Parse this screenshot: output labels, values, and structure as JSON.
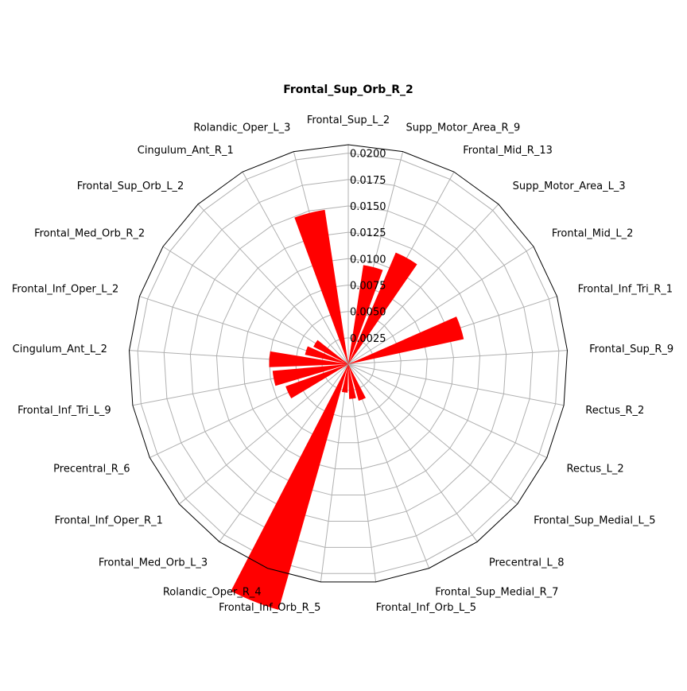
{
  "chart_data": {
    "type": "bar",
    "subtype": "polar",
    "title": "Frontal_Sup_Orb_R_2",
    "categories": [
      "Frontal_Sup_L_2",
      "Supp_Motor_Area_R_9",
      "Frontal_Mid_R_13",
      "Supp_Motor_Area_L_3",
      "Frontal_Mid_L_2",
      "Frontal_Inf_Tri_R_1",
      "Frontal_Sup_R_9",
      "Rectus_R_2",
      "Rectus_L_2",
      "Frontal_Sup_Medial_L_5",
      "Precentral_L_8",
      "Frontal_Sup_Medial_R_7",
      "Frontal_Inf_Orb_L_5",
      "Frontal_Inf_Orb_R_5",
      "Rolandic_Oper_R_4",
      "Frontal_Med_Orb_L_3",
      "Frontal_Inf_Oper_R_1",
      "Precentral_R_6",
      "Frontal_Inf_Tri_L_9",
      "Cingulum_Ant_L_2",
      "Frontal_Inf_Oper_L_2",
      "Frontal_Med_Orb_R_2",
      "Frontal_Sup_Orb_L_2",
      "Cingulum_Ant_R_1",
      "Rolandic_Oper_L_3"
    ],
    "values": [
      0.0,
      0.0095,
      0.0115,
      0.0,
      0.0,
      0.0112,
      0.0,
      0.0,
      0.0,
      0.0,
      0.0,
      0.0036,
      0.0033,
      0.0027,
      0.0242,
      0.0,
      0.0,
      0.0063,
      0.0072,
      0.0075,
      0.0042,
      0.0037,
      0.0,
      0.0,
      0.0148
    ],
    "rlim": [
      0,
      0.0208
    ],
    "rticks": [
      "0.0025",
      "0.0050",
      "0.0075",
      "0.0100",
      "0.0125",
      "0.0150",
      "0.0175",
      "0.0200"
    ],
    "direction": "clockwise",
    "zero_location": "top",
    "grid": true,
    "bar_color": "#ff0000",
    "grid_color": "#b0b0b0"
  }
}
